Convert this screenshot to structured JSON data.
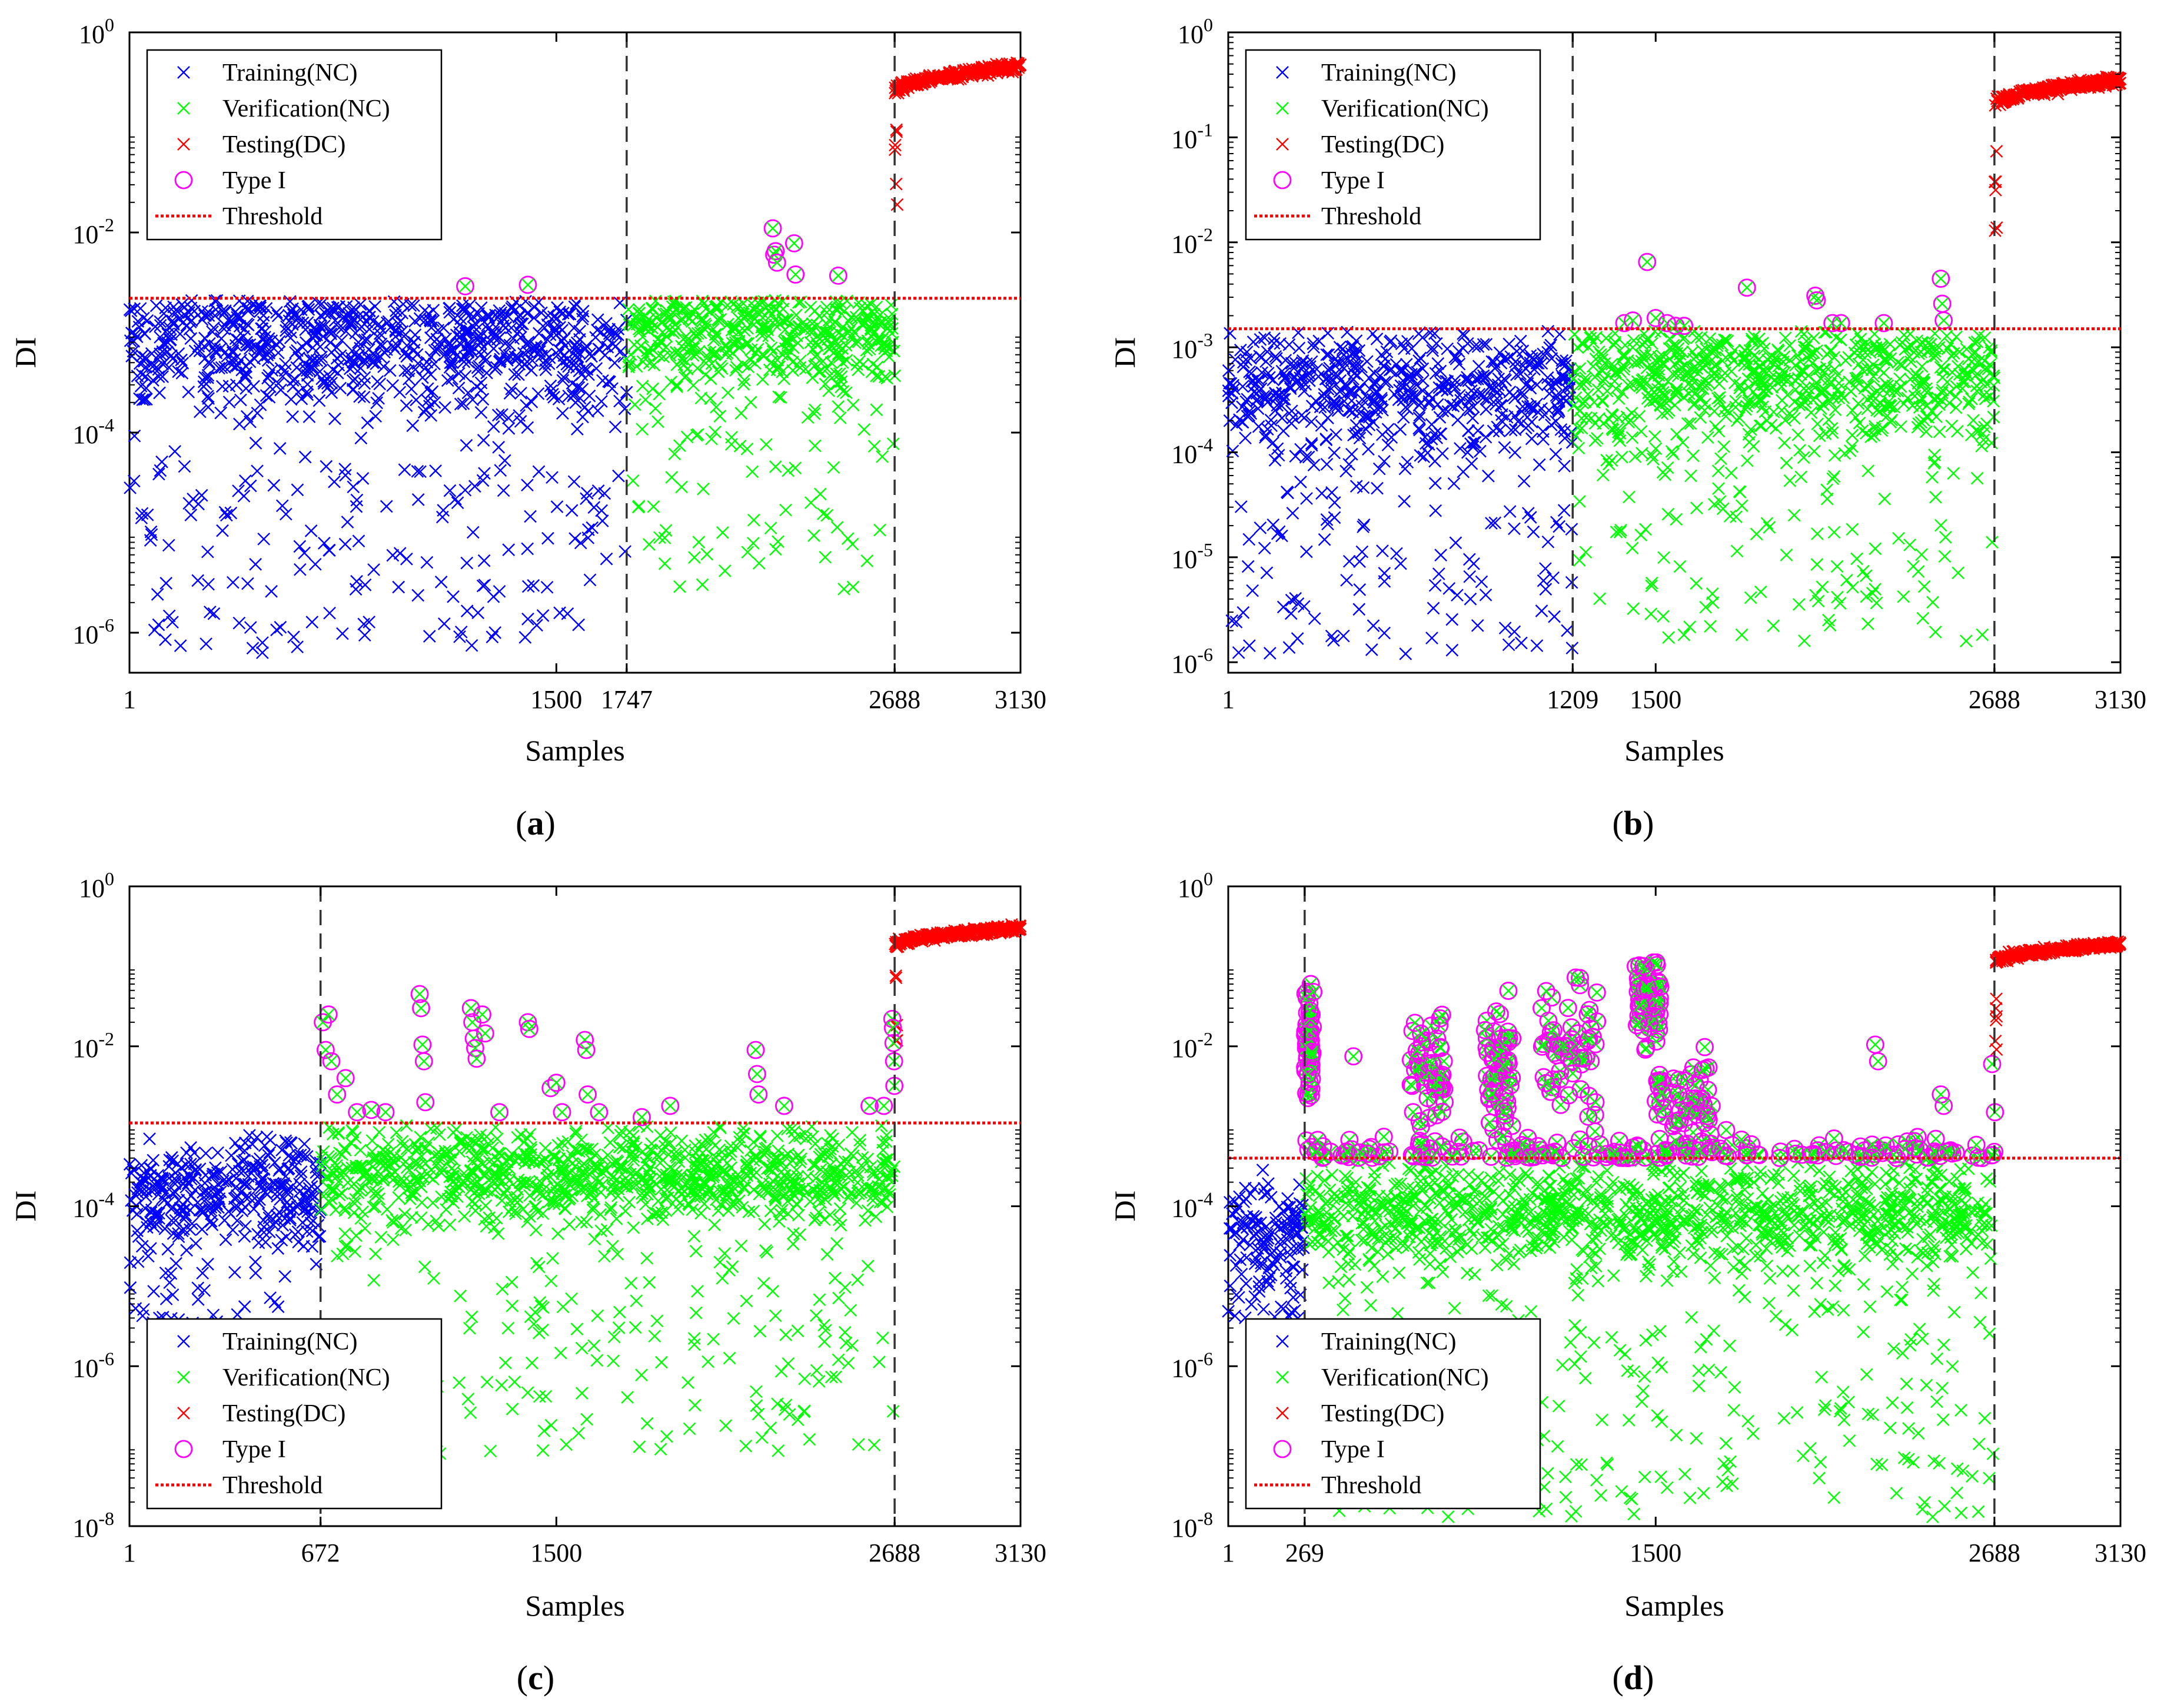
{
  "figure": {
    "legend_items": [
      {
        "label": "Training(NC)",
        "marker": "x",
        "color": "#0000ff"
      },
      {
        "label": "Verification(NC)",
        "marker": "x",
        "color": "#00ff00"
      },
      {
        "label": "Testing(DC)",
        "marker": "x",
        "color": "#ff0000"
      },
      {
        "label": "Type I",
        "marker": "o",
        "color": "#ff00ff"
      },
      {
        "label": "Threshold",
        "marker": "dotted-line",
        "color": "#ff0000"
      }
    ],
    "colors": {
      "training": "#0000ff",
      "verification": "#00ff00",
      "testing": "#ff0000",
      "type1": "#ff00ff",
      "threshold": "#ff0000",
      "boundary": "#333333"
    }
  },
  "chart_data": [
    {
      "type": "scatter",
      "panel": "a",
      "caption": "(a)",
      "caption_letter": "a",
      "xlabel": "Samples",
      "ylabel": "DI",
      "yscale": "log",
      "xlim": [
        1,
        3130
      ],
      "ylim_exp": [
        -6.4,
        0
      ],
      "xticks": [
        1,
        1500,
        1747,
        2688,
        3130
      ],
      "yticks": [
        {
          "exp": -6,
          "label": "10",
          "sup": "-6"
        },
        {
          "exp": -4,
          "label": "10",
          "sup": "-4"
        },
        {
          "exp": -2,
          "label": "10",
          "sup": "-2"
        },
        {
          "exp": 0,
          "label": "10",
          "sup": "0"
        }
      ],
      "boundaries": [
        1747,
        2688
      ],
      "threshold": 0.0022,
      "legend_position": "top-left",
      "series": [
        {
          "name": "Training(NC)",
          "range": [
            1,
            1747
          ],
          "median_exp": -3.1,
          "spread": 0.45,
          "low_tail": 0.22,
          "low_min_exp": -6.2
        },
        {
          "name": "Verification(NC)",
          "range": [
            1748,
            2688
          ],
          "median_exp": -3.0,
          "spread": 0.4,
          "low_tail": 0.15,
          "low_min_exp": -5.6
        },
        {
          "name": "Testing(DC)",
          "range": [
            2689,
            3130
          ],
          "start_value": 0.25,
          "end_value": 0.45
        },
        {
          "name": "Type I",
          "points": [
            [
              1180,
              0.0029
            ],
            [
              1400,
              0.003
            ],
            [
              2260,
              0.011
            ],
            [
              2265,
              0.006
            ],
            [
              2270,
              0.0065
            ],
            [
              2275,
              0.005
            ],
            [
              2335,
              0.0078
            ],
            [
              2340,
              0.0038
            ],
            [
              2490,
              0.0037
            ]
          ]
        }
      ]
    },
    {
      "type": "scatter",
      "panel": "b",
      "caption": "(b)",
      "caption_letter": "b",
      "xlabel": "Samples",
      "ylabel": "DI",
      "yscale": "log",
      "xlim": [
        1,
        3130
      ],
      "ylim_exp": [
        -6.1,
        0
      ],
      "xticks": [
        1,
        1209,
        1500,
        2688,
        3130
      ],
      "yticks": [
        {
          "exp": -6,
          "label": "10",
          "sup": "-6"
        },
        {
          "exp": -5,
          "label": "10",
          "sup": "-5"
        },
        {
          "exp": -4,
          "label": "10",
          "sup": "-4"
        },
        {
          "exp": -3,
          "label": "10",
          "sup": "-3"
        },
        {
          "exp": -2,
          "label": "10",
          "sup": "-2"
        },
        {
          "exp": -1,
          "label": "10",
          "sup": "-1"
        },
        {
          "exp": 0,
          "label": "10",
          "sup": "0"
        }
      ],
      "boundaries": [
        1209,
        2688
      ],
      "threshold": 0.0015,
      "legend_position": "top-left",
      "series": [
        {
          "name": "Training(NC)",
          "range": [
            1,
            1209
          ],
          "median_exp": -3.4,
          "spread": 0.4,
          "low_tail": 0.22,
          "low_min_exp": -5.95
        },
        {
          "name": "Verification(NC)",
          "range": [
            1210,
            2688
          ],
          "median_exp": -3.3,
          "spread": 0.4,
          "low_tail": 0.15,
          "low_min_exp": -5.8
        },
        {
          "name": "Testing(DC)",
          "range": [
            2689,
            3130
          ],
          "start_value": 0.2,
          "end_value": 0.35
        },
        {
          "name": "Type I",
          "points": [
            [
              1390,
              0.0017
            ],
            [
              1420,
              0.0018
            ],
            [
              1470,
              0.0065
            ],
            [
              1500,
              0.0019
            ],
            [
              1540,
              0.0017
            ],
            [
              1570,
              0.0016
            ],
            [
              1600,
              0.0016
            ],
            [
              1820,
              0.0037
            ],
            [
              2060,
              0.0031
            ],
            [
              2065,
              0.0028
            ],
            [
              2120,
              0.0017
            ],
            [
              2150,
              0.0017
            ],
            [
              2300,
              0.0017
            ],
            [
              2500,
              0.0045
            ],
            [
              2505,
              0.0026
            ],
            [
              2510,
              0.0018
            ]
          ]
        }
      ]
    },
    {
      "type": "scatter",
      "panel": "c",
      "caption": "(c)",
      "caption_letter": "c",
      "xlabel": "Samples",
      "ylabel": "DI",
      "yscale": "log",
      "xlim": [
        1,
        3130
      ],
      "ylim_exp": [
        -8,
        0
      ],
      "xticks": [
        1,
        672,
        1500,
        2688,
        3130
      ],
      "yticks": [
        {
          "exp": -8,
          "label": "10",
          "sup": "-8"
        },
        {
          "exp": -6,
          "label": "10",
          "sup": "-6"
        },
        {
          "exp": -4,
          "label": "10",
          "sup": "-4"
        },
        {
          "exp": -2,
          "label": "10",
          "sup": "-2"
        },
        {
          "exp": 0,
          "label": "10",
          "sup": "0"
        }
      ],
      "boundaries": [
        672,
        2688
      ],
      "threshold": 0.0011,
      "legend_position": "bottom-left",
      "series": [
        {
          "name": "Training(NC)",
          "range": [
            1,
            672
          ],
          "median_exp": -3.8,
          "spread": 0.45,
          "low_tail": 0.18,
          "low_min_exp": -5.7
        },
        {
          "name": "Verification(NC)",
          "range": [
            673,
            2688
          ],
          "median_exp": -3.6,
          "spread": 0.4,
          "low_tail": 0.18,
          "low_min_exp": -7.1
        },
        {
          "name": "Testing(DC)",
          "range": [
            2689,
            3130
          ],
          "start_value": 0.18,
          "end_value": 0.3
        },
        {
          "name": "Type I",
          "points": [
            [
              680,
              0.02
            ],
            [
              690,
              0.009
            ],
            [
              700,
              0.025
            ],
            [
              710,
              0.0065
            ],
            [
              730,
              0.0025
            ],
            [
              760,
              0.004
            ],
            [
              800,
              0.0015
            ],
            [
              850,
              0.0016
            ],
            [
              900,
              0.0015
            ],
            [
              1020,
              0.045
            ],
            [
              1025,
              0.03
            ],
            [
              1030,
              0.0105
            ],
            [
              1035,
              0.0065
            ],
            [
              1040,
              0.002
            ],
            [
              1200,
              0.03
            ],
            [
              1205,
              0.02
            ],
            [
              1210,
              0.0125
            ],
            [
              1215,
              0.0095
            ],
            [
              1220,
              0.007
            ],
            [
              1240,
              0.025
            ],
            [
              1250,
              0.0145
            ],
            [
              1300,
              0.0015
            ],
            [
              1400,
              0.02
            ],
            [
              1405,
              0.0165
            ],
            [
              1480,
              0.003
            ],
            [
              1500,
              0.0035
            ],
            [
              1520,
              0.0015
            ],
            [
              1600,
              0.012
            ],
            [
              1605,
              0.009
            ],
            [
              1610,
              0.0025
            ],
            [
              1650,
              0.0015
            ],
            [
              1800,
              0.0013
            ],
            [
              1900,
              0.0018
            ],
            [
              2200,
              0.009
            ],
            [
              2205,
              0.0045
            ],
            [
              2210,
              0.0025
            ],
            [
              2300,
              0.0018
            ],
            [
              2600,
              0.0018
            ],
            [
              2650,
              0.0018
            ],
            [
              2680,
              0.022
            ],
            [
              2682,
              0.017
            ],
            [
              2684,
              0.011
            ],
            [
              2686,
              0.0065
            ],
            [
              2687,
              0.0032
            ]
          ]
        }
      ]
    },
    {
      "type": "scatter",
      "panel": "d",
      "caption": "(d)",
      "caption_letter": "d",
      "xlabel": "Samples",
      "ylabel": "DI",
      "yscale": "log",
      "xlim": [
        1,
        3130
      ],
      "ylim_exp": [
        -8,
        0
      ],
      "xticks": [
        1,
        269,
        1500,
        2688,
        3130
      ],
      "yticks": [
        {
          "exp": -8,
          "label": "10",
          "sup": "-8"
        },
        {
          "exp": -6,
          "label": "10",
          "sup": "-6"
        },
        {
          "exp": -4,
          "label": "10",
          "sup": "-4"
        },
        {
          "exp": -2,
          "label": "10",
          "sup": "-2"
        },
        {
          "exp": 0,
          "label": "10",
          "sup": "0"
        }
      ],
      "boundaries": [
        269,
        2688
      ],
      "threshold": 0.0004,
      "legend_position": "bottom-left",
      "series": [
        {
          "name": "Training(NC)",
          "range": [
            1,
            269
          ],
          "median_exp": -4.3,
          "spread": 0.4,
          "low_tail": 0.2,
          "low_min_exp": -5.4
        },
        {
          "name": "Verification(NC)",
          "range": [
            270,
            2688
          ],
          "median_exp": -4.1,
          "spread": 0.45,
          "low_tail": 0.2,
          "low_min_exp": -7.9
        },
        {
          "name": "Testing(DC)",
          "range": [
            2689,
            3130
          ],
          "start_value": 0.11,
          "end_value": 0.19
        },
        {
          "name": "Type I",
          "clusters": [
            [
              270,
              300,
              -2.0,
              0.5
            ],
            [
              640,
              760,
              -2.4,
              0.6
            ],
            [
              900,
              1000,
              -2.3,
              0.5
            ],
            [
              1100,
              1300,
              -2.0,
              0.6
            ],
            [
              1430,
              1520,
              -1.5,
              0.4
            ],
            [
              1500,
              1700,
              -2.7,
              0.5
            ]
          ],
          "low_band": [
            270,
            2688,
            -3.0,
            0.4
          ],
          "points": [
            [
              1430,
              0.1
            ],
            [
              1470,
              0.08
            ],
            [
              2270,
              0.0105
            ],
            [
              2280,
              0.0065
            ],
            [
              2500,
              0.0025
            ],
            [
              2510,
              0.0018
            ],
            [
              2680,
              0.006
            ],
            [
              2690,
              0.0015
            ],
            [
              440,
              0.0075
            ],
            [
              1100,
              0.03
            ]
          ]
        }
      ]
    }
  ]
}
